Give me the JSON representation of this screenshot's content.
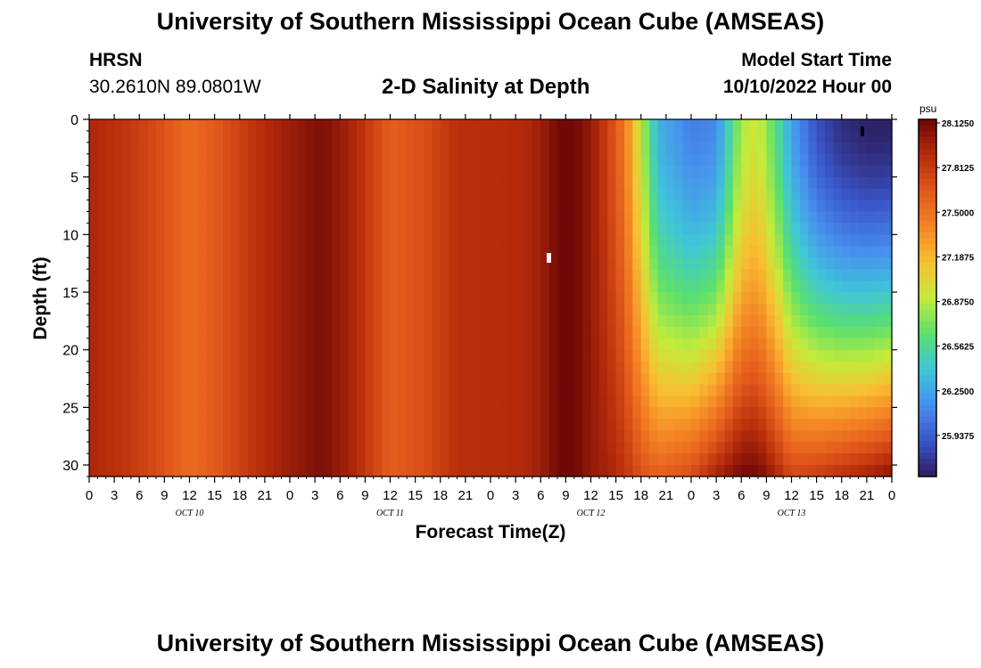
{
  "header": {
    "title": "University of Southern Mississippi Ocean Cube (AMSEAS)",
    "station": "HRSN",
    "coords": "30.2610N  89.0801W",
    "subtitle": "2-D Salinity at Depth",
    "start_label": "Model Start Time",
    "start_value": "10/10/2022 Hour 00"
  },
  "footer": {
    "title": "University of Southern Mississippi Ocean Cube (AMSEAS)"
  },
  "chart_data": {
    "type": "heatmap",
    "xlabel": "Forecast Time(Z)",
    "ylabel": "Depth (ft)",
    "colorbar_unit": "psu",
    "x_ticklabels": [
      "0",
      "3",
      "6",
      "9",
      "12",
      "15",
      "18",
      "21",
      "0",
      "3",
      "6",
      "9",
      "12",
      "15",
      "18",
      "21",
      "0",
      "3",
      "6",
      "9",
      "12",
      "15",
      "18",
      "21",
      "0",
      "3",
      "6",
      "9",
      "12",
      "15",
      "18",
      "21",
      "0"
    ],
    "x_hours_range": [
      0,
      96
    ],
    "date_labels": [
      {
        "text": "OCT 10",
        "hour": 12
      },
      {
        "text": "OCT 11",
        "hour": 36
      },
      {
        "text": "OCT 12",
        "hour": 60
      },
      {
        "text": "OCT 13",
        "hour": 84
      }
    ],
    "y_ticks": [
      0,
      5,
      10,
      15,
      20,
      25,
      30
    ],
    "ylim": [
      0,
      31
    ],
    "y_inverted": true,
    "colorbar_levels": [
      "28.1250",
      "27.8125",
      "27.5000",
      "27.1875",
      "26.8750",
      "26.5625",
      "26.2500",
      "25.9375"
    ],
    "clim": [
      25.78,
      28.125
    ],
    "palette": [
      "#2b1d5e",
      "#3a56c9",
      "#4790ee",
      "#3fc6d9",
      "#5ae06c",
      "#c4eb3b",
      "#f8bf33",
      "#f48524",
      "#e2571b",
      "#b62b0a",
      "#6e0808"
    ],
    "profile_note": "Salinity sampled per hour (0-96) top to bottom; uniform column values where salinity constant with depth.",
    "columns": [
      {
        "hour": 0,
        "surface": 27.92,
        "bottom": 27.92
      },
      {
        "hour": 4,
        "surface": 27.85,
        "bottom": 27.85
      },
      {
        "hour": 8,
        "surface": 27.72,
        "bottom": 27.72
      },
      {
        "hour": 12,
        "surface": 27.55,
        "bottom": 27.55
      },
      {
        "hour": 16,
        "surface": 27.68,
        "bottom": 27.68
      },
      {
        "hour": 20,
        "surface": 27.86,
        "bottom": 27.86
      },
      {
        "hour": 24,
        "surface": 27.98,
        "bottom": 27.98
      },
      {
        "hour": 28,
        "surface": 28.08,
        "bottom": 28.08
      },
      {
        "hour": 32,
        "surface": 27.9,
        "bottom": 27.9
      },
      {
        "hour": 36,
        "surface": 27.62,
        "bottom": 27.62
      },
      {
        "hour": 40,
        "surface": 27.7,
        "bottom": 27.7
      },
      {
        "hour": 44,
        "surface": 27.87,
        "bottom": 27.87
      },
      {
        "hour": 48,
        "surface": 27.88,
        "bottom": 27.88
      },
      {
        "hour": 52,
        "surface": 27.9,
        "bottom": 27.9
      },
      {
        "hour": 55,
        "surface": 28.02,
        "bottom": 28.02
      },
      {
        "hour": 56,
        "surface": 28.12,
        "bottom": 28.12
      },
      {
        "hour": 58,
        "surface": 28.12,
        "bottom": 28.12
      },
      {
        "hour": 60,
        "surface": 28.0,
        "bottom": 28.0
      },
      {
        "hour": 62,
        "surface": 27.78,
        "bottom": 27.95
      },
      {
        "hour": 64,
        "surface": 27.5,
        "bottom": 27.85
      },
      {
        "hour": 66,
        "surface": 26.95,
        "bottom": 27.7
      },
      {
        "hour": 68,
        "surface": 26.4,
        "bottom": 27.62
      },
      {
        "hour": 72,
        "surface": 26.18,
        "bottom": 27.72
      },
      {
        "hour": 75,
        "surface": 26.22,
        "bottom": 27.95
      },
      {
        "hour": 78,
        "surface": 26.9,
        "bottom": 28.12
      },
      {
        "hour": 80,
        "surface": 27.0,
        "bottom": 28.12
      },
      {
        "hour": 82,
        "surface": 26.7,
        "bottom": 27.95
      },
      {
        "hour": 84,
        "surface": 26.32,
        "bottom": 27.75
      },
      {
        "hour": 87,
        "surface": 26.0,
        "bottom": 27.8
      },
      {
        "hour": 90,
        "surface": 25.85,
        "bottom": 27.88
      },
      {
        "hour": 93,
        "surface": 25.8,
        "bottom": 27.95
      },
      {
        "hour": 96,
        "surface": 25.8,
        "bottom": 28.05
      }
    ]
  }
}
